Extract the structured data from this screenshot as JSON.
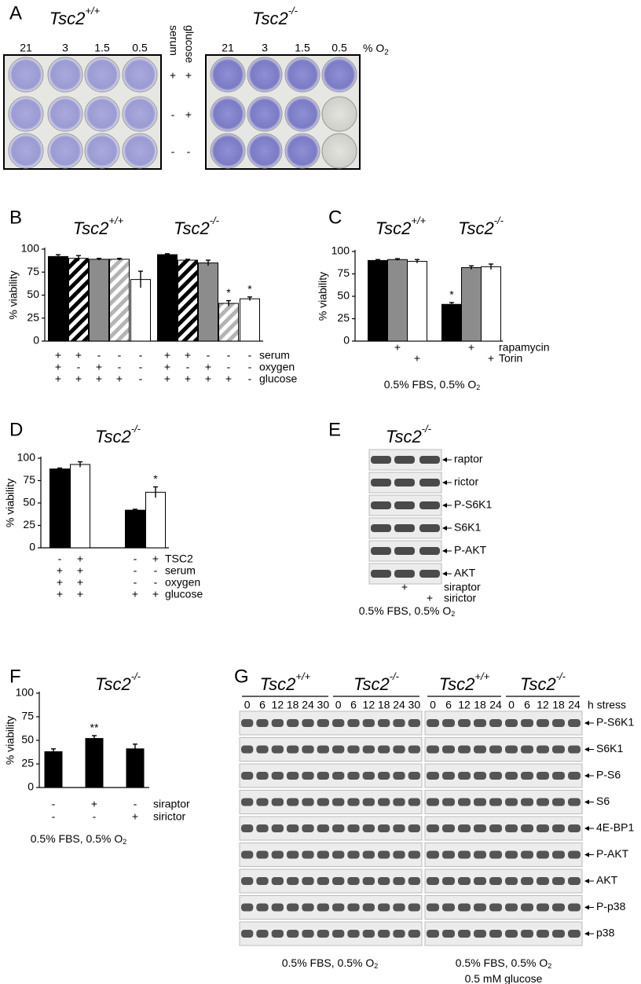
{
  "panels": [
    "A",
    "B",
    "C",
    "D",
    "E",
    "F",
    "G"
  ],
  "panel_a": {
    "genotypes": [
      {
        "text": "Tsc2",
        "sup": "+/+"
      },
      {
        "text": "Tsc2",
        "sup": "-/-"
      }
    ],
    "oxygen_levels": [
      "21",
      "3",
      "1.5",
      "0.5"
    ],
    "oxygen_unit": {
      "text": "% O",
      "sub": "2"
    },
    "conditions": [
      "serum",
      "glucose"
    ],
    "rows": [
      [
        "+",
        "+"
      ],
      [
        "-",
        "+"
      ],
      [
        "-",
        "-"
      ]
    ]
  },
  "chart_data": [
    {
      "type": "bar",
      "ylabel": "% viability",
      "ylim": [
        0,
        100
      ],
      "yticks": [
        0,
        25,
        50,
        75,
        100
      ],
      "fills": [
        "black",
        "hatch",
        "gray",
        "light-hatch",
        "white",
        "black",
        "hatch",
        "gray",
        "light-hatch",
        "white"
      ],
      "groups": [
        {
          "title": {
            "text": "Tsc2",
            "sup": "+/+"
          },
          "values": [
            92,
            90,
            89,
            89,
            67
          ],
          "errors": [
            2,
            3,
            1,
            1,
            9
          ]
        },
        {
          "title": {
            "text": "Tsc2",
            "sup": "-/-"
          },
          "values": [
            94,
            88,
            85,
            41,
            46
          ],
          "errors": [
            1,
            1,
            3,
            3,
            2
          ],
          "significance": [
            null,
            null,
            null,
            "*",
            "*"
          ]
        }
      ],
      "conditions": [
        {
          "name": "serum",
          "signs": [
            "+",
            "+",
            "-",
            "-",
            "-",
            "+",
            "+",
            "-",
            "-",
            "-"
          ]
        },
        {
          "name": "oxygen",
          "signs": [
            "+",
            "-",
            "+",
            "-",
            "-",
            "+",
            "-",
            "+",
            "-",
            "-"
          ]
        },
        {
          "name": "glucose",
          "signs": [
            "+",
            "+",
            "+",
            "+",
            "-",
            "+",
            "+",
            "+",
            "+",
            "-"
          ]
        }
      ]
    },
    {
      "type": "bar",
      "ylabel": "% viability",
      "ylim": [
        0,
        100
      ],
      "yticks": [
        0,
        25,
        50,
        75,
        100
      ],
      "fills": [
        "black",
        "gray",
        "white",
        "black",
        "gray",
        "white"
      ],
      "groups": [
        {
          "title": {
            "text": "Tsc2",
            "sup": "+/+"
          },
          "values": [
            90,
            91,
            89
          ],
          "errors": [
            1,
            1,
            2
          ]
        },
        {
          "title": {
            "text": "Tsc2",
            "sup": "-/-"
          },
          "values": [
            41,
            82,
            83
          ],
          "errors": [
            2,
            2,
            3
          ],
          "significance": [
            "*",
            null,
            null
          ]
        }
      ],
      "conditions": [
        {
          "name": "rapamycin",
          "signs": [
            null,
            "+",
            null,
            null,
            "+",
            null
          ]
        },
        {
          "name": "Torin",
          "signs": [
            null,
            null,
            "+",
            null,
            null,
            "+"
          ]
        }
      ],
      "footnote": {
        "text": "0.5% FBS, 0.5% O",
        "sub": "2"
      }
    },
    {
      "type": "bar",
      "title": {
        "text": "Tsc2",
        "sup": "-/-"
      },
      "ylabel": "% viability",
      "ylim": [
        0,
        100
      ],
      "yticks": [
        0,
        25,
        50,
        75,
        100
      ],
      "fills": [
        "black",
        "white",
        "black",
        "white"
      ],
      "groups": [
        {
          "values": [
            88,
            93
          ],
          "errors": [
            1,
            3
          ]
        },
        {
          "values": [
            42,
            62
          ],
          "errors": [
            1,
            6
          ],
          "significance": [
            null,
            "*"
          ]
        }
      ],
      "conditions": [
        {
          "name": "TSC2",
          "signs": [
            "-",
            "+",
            "-",
            "+"
          ]
        },
        {
          "name": "serum",
          "signs": [
            "+",
            "+",
            "-",
            "-"
          ]
        },
        {
          "name": "oxygen",
          "signs": [
            "+",
            "+",
            "-",
            "-"
          ]
        },
        {
          "name": "glucose",
          "signs": [
            "+",
            "+",
            "+",
            "+"
          ]
        }
      ]
    },
    {
      "type": "bar",
      "title": {
        "text": "Tsc2",
        "sup": "-/-"
      },
      "ylabel": "% viability",
      "ylim": [
        0,
        100
      ],
      "yticks": [
        0,
        25,
        50,
        75,
        100
      ],
      "fills": [
        "black",
        "black",
        "black"
      ],
      "groups": [
        {
          "values": [
            38,
            52,
            41
          ],
          "errors": [
            3,
            3,
            5
          ],
          "significance": [
            null,
            "**",
            null
          ]
        }
      ],
      "conditions": [
        {
          "name": "siraptor",
          "signs": [
            "-",
            "+",
            "-"
          ]
        },
        {
          "name": "sirictor",
          "signs": [
            "-",
            "-",
            "+"
          ]
        }
      ],
      "footnote": {
        "text": "0.5% FBS, 0.5% O",
        "sub": "2"
      }
    }
  ],
  "panel_e": {
    "title": {
      "text": "Tsc2",
      "sup": "-/-"
    },
    "proteins": [
      "raptor",
      "rictor",
      "P-S6K1",
      "S6K1",
      "P-AKT",
      "AKT"
    ],
    "conditions": [
      {
        "name": "siraptor",
        "signs": [
          null,
          "+",
          null
        ]
      },
      {
        "name": "sirictor",
        "signs": [
          null,
          null,
          "+"
        ]
      }
    ],
    "footnote": {
      "text": "0.5% FBS, 0.5% O",
      "sub": "2"
    }
  },
  "panel_g": {
    "blocks": [
      {
        "genotypes": [
          {
            "text": "Tsc2",
            "sup": "+/+"
          },
          {
            "text": "Tsc2",
            "sup": "-/-"
          }
        ],
        "timepoints": [
          [
            "0",
            "6",
            "12",
            "18",
            "24",
            "30"
          ],
          [
            "0",
            "6",
            "12",
            "18",
            "24",
            "30"
          ]
        ],
        "footnote": [
          {
            "text": "0.5% FBS, 0.5% O",
            "sub": "2"
          }
        ]
      },
      {
        "genotypes": [
          {
            "text": "Tsc2",
            "sup": "+/+"
          },
          {
            "text": "Tsc2",
            "sup": "-/-"
          }
        ],
        "timepoints": [
          [
            "0",
            "6",
            "12",
            "18",
            "24"
          ],
          [
            "0",
            "6",
            "12",
            "18",
            "24"
          ]
        ],
        "footnote": [
          {
            "text": "0.5% FBS, 0.5% O",
            "sub": "2"
          },
          {
            "text": "0.5 mM glucose"
          }
        ]
      }
    ],
    "time_unit": "h stress",
    "proteins": [
      "P-S6K1",
      "S6K1",
      "P-S6",
      "S6",
      "4E-BP1",
      "P-AKT",
      "AKT",
      "P-p38",
      "p38"
    ]
  }
}
